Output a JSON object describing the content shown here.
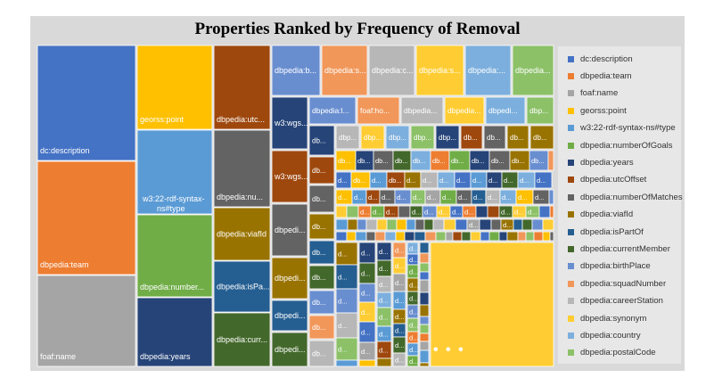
{
  "chart_data": {
    "type": "treemap",
    "title": "Properties Ranked by Frequency of Removal",
    "legend_position": "right",
    "legend": [
      {
        "name": "dc:description",
        "color": "#4472c4"
      },
      {
        "name": "dbpedia:team",
        "color": "#ed7d31"
      },
      {
        "name": "foaf:name",
        "color": "#a5a5a5"
      },
      {
        "name": "georss:point",
        "color": "#ffc000"
      },
      {
        "name": "w3:22-rdf-syntax-ns#type",
        "color": "#5b9bd5"
      },
      {
        "name": "dbpedia:numberOfGoals",
        "color": "#70ad47"
      },
      {
        "name": "dbpedia:years",
        "color": "#264478"
      },
      {
        "name": "dbpedia:utcOffset",
        "color": "#9e480e"
      },
      {
        "name": "dbpedia:numberOfMatches",
        "color": "#636363"
      },
      {
        "name": "dbpedia:viafId",
        "color": "#997300"
      },
      {
        "name": "dbpedia:isPartOf",
        "color": "#255e91"
      },
      {
        "name": "dbpedia:currentMember",
        "color": "#43682b"
      },
      {
        "name": "dbpedia:birthPlace",
        "color": "#698ed0"
      },
      {
        "name": "dbpedia:squadNumber",
        "color": "#f1975a"
      },
      {
        "name": "dbpedia:careerStation",
        "color": "#b7b7b7"
      },
      {
        "name": "dbpedia:synonym",
        "color": "#ffcd33"
      },
      {
        "name": "dbpedia:country",
        "color": "#7cafdd"
      },
      {
        "name": "dbpedia:postalCode",
        "color": "#8cc168"
      }
    ],
    "labels": {
      "l1": "dc:description",
      "l2": "dbpedia:team",
      "l3": "foaf:name",
      "l4": "georss:point",
      "l5a": "w3:22-rdf-syntax-",
      "l5b": "ns#type",
      "l6": "dbpedia:number...",
      "l7": "dbpedia:years",
      "l8": "dbpedia:utc...",
      "l9": "dbpedia:nu...",
      "l10": "dbpedia:viafId",
      "l11": "dbpedia:isPa...",
      "l12": "dbpedia:curr...",
      "l13": "dbpedia:b...",
      "l14": "dbpedia:s...",
      "l15": "dbpedia:c...",
      "l16": "dbpedia:s...",
      "l17": "dbpedia:...",
      "l18": "dbpedia...",
      "l19": "w3:wgs...",
      "l20": "w3:wgs...",
      "l21": "dbpedi...",
      "l22": "dbpedi...",
      "l23": "dbpedi...",
      "l24": "dbpedi...",
      "l25": "dbpedia:l...",
      "l26": "foaf:ho...",
      "l27": "dbpedia...",
      "l28": "dbpedia...",
      "l29": "dbpedi...",
      "l30": "dbp...",
      "db": "db...",
      "dbp": "dbp...",
      "dd": "d...",
      "f": "f..."
    },
    "ellipsis": "• • •"
  }
}
